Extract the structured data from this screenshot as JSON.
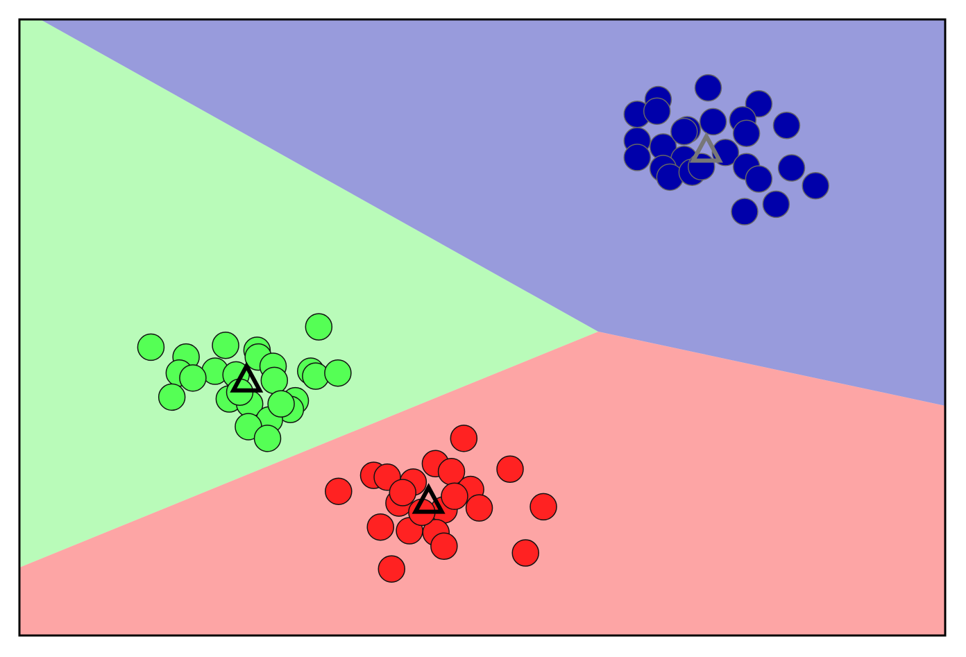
{
  "chart_data": {
    "type": "scatter",
    "xlim": [
      0,
      15
    ],
    "ylim": [
      0,
      10
    ],
    "series": [
      {
        "color": "#0000aa",
        "x": [
          11.16,
          10.35,
          11.98,
          10.01,
          10.33,
          11.72,
          12.43,
          11.24,
          10.82,
          11.78,
          10.01,
          10.43,
          10.77,
          11.44,
          11.78,
          12.51,
          11.98,
          12.9,
          10.01,
          10.43,
          10.54,
          10.9,
          11.05,
          11.75,
          12.26,
          10.77
        ],
        "y": [
          8.89,
          8.7,
          8.63,
          8.46,
          8.51,
          8.37,
          8.28,
          8.34,
          8.21,
          8.15,
          8.03,
          7.93,
          7.73,
          7.84,
          7.61,
          7.59,
          7.41,
          7.3,
          7.76,
          7.58,
          7.44,
          7.52,
          7.61,
          6.88,
          7.0,
          8.18
        ]
      },
      {
        "color": "#55ff55",
        "x": [
          2.13,
          4.85,
          2.7,
          3.34,
          3.85,
          3.87,
          2.59,
          3.17,
          4.11,
          2.81,
          4.72,
          4.8,
          5.16,
          4.13,
          2.47,
          3.4,
          3.73,
          4.47,
          4.39,
          4.05,
          3.71,
          4.02,
          3.51,
          3.57,
          4.24
        ],
        "y": [
          4.68,
          5.01,
          4.52,
          4.71,
          4.63,
          4.52,
          4.26,
          4.29,
          4.37,
          4.18,
          4.29,
          4.21,
          4.26,
          4.14,
          3.87,
          3.84,
          3.76,
          3.81,
          3.67,
          3.5,
          3.39,
          3.2,
          4.23,
          3.95,
          3.76
        ]
      },
      {
        "color": "#ff2222",
        "x": [
          7.2,
          5.17,
          5.74,
          5.96,
          6.74,
          7.0,
          7.95,
          6.38,
          7.31,
          7.45,
          8.49,
          6.15,
          6.88,
          5.85,
          6.32,
          6.75,
          6.88,
          8.2,
          6.03,
          6.52,
          7.05,
          6.21
        ],
        "y": [
          3.2,
          2.34,
          2.6,
          2.57,
          2.79,
          2.66,
          2.7,
          2.49,
          2.37,
          2.07,
          2.09,
          2.15,
          2.04,
          1.76,
          1.7,
          1.67,
          1.45,
          1.34,
          1.08,
          2.0,
          2.26,
          2.32
        ]
      }
    ],
    "centroids": {
      "x": [
        11.13,
        3.68,
        6.63
      ],
      "y": [
        7.89,
        4.16,
        2.19
      ],
      "colors": [
        "#777777",
        "#000000",
        "#000000"
      ]
    }
  }
}
